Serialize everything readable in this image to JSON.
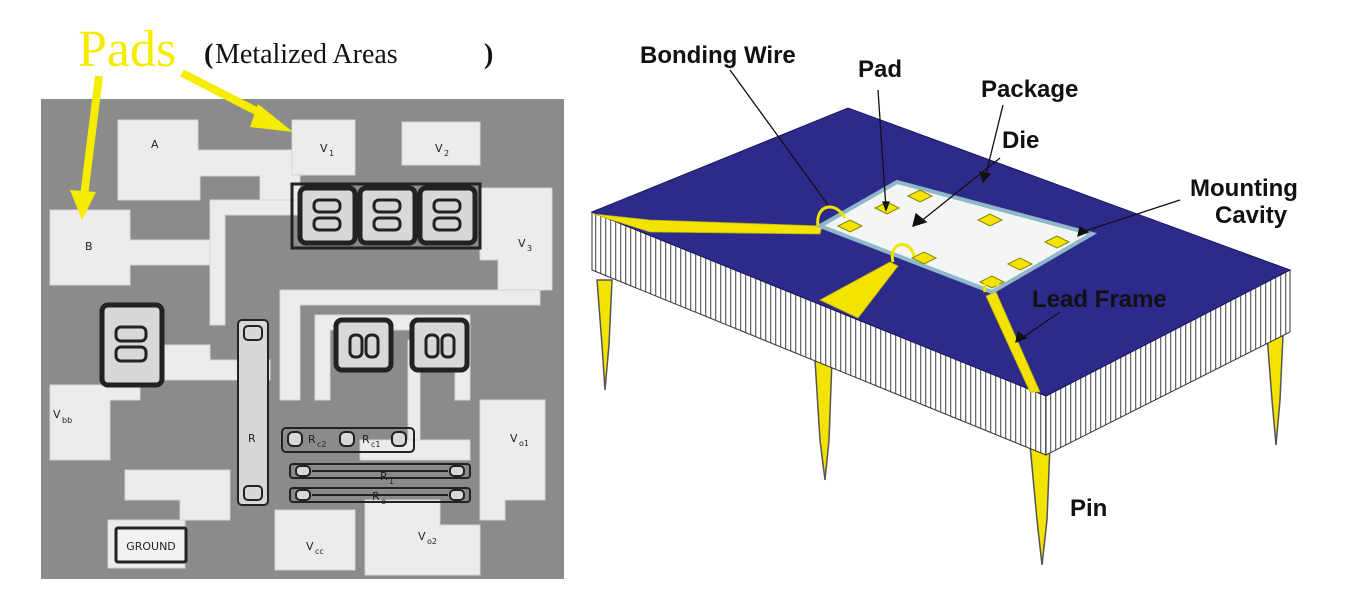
{
  "left_panel": {
    "title_main": "Pads",
    "title_sub_open": "(",
    "title_sub": "Metalized Areas ",
    "title_sub_close": ")",
    "pad_labels": {
      "a": "A",
      "v1": "V",
      "v1_sub": "1",
      "v2": "V",
      "v2_sub": "2",
      "b": "B",
      "v3": "V",
      "v3_sub": "3",
      "vbb": "V",
      "vbb_sub": "bb",
      "r": "R",
      "rc2": "R",
      "rc2_sub": "c2",
      "rc1": "R",
      "rc1_sub": "c1",
      "r1": "R",
      "r1_sub": "1",
      "re": "R",
      "re_sub": "e",
      "vo1": "V",
      "vo1_sub": "o1",
      "ground": "GROUND",
      "vcc": "V",
      "vcc_sub": "cc",
      "vo2": "V",
      "vo2_sub": "o2"
    }
  },
  "right_panel": {
    "labels": {
      "bonding_wire": "Bonding Wire",
      "pad": "Pad",
      "package": "Package",
      "die": "Die",
      "mounting_line1": "Mounting",
      "mounting_line2": "Cavity",
      "lead_frame": "Lead Frame",
      "pin": "Pin"
    }
  },
  "colors": {
    "annotation_yellow": "#f5ec00",
    "package_top": "#2e2a8c",
    "lead_yellow": "#f2e400",
    "die_fill": "#f4f6f6",
    "die_border": "#8fb8c8",
    "chip_background": "#8a8a8a",
    "chip_metal": "#ececec"
  }
}
